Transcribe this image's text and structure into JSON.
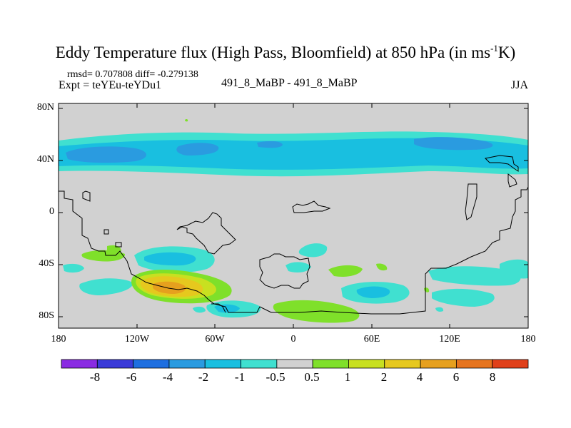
{
  "title": {
    "main": "Eddy Temperature flux (High Pass, Bloomfield) at 850 hPa (in ms",
    "sup": "-1",
    "tail": "K)"
  },
  "stats": "rmsd= 0.707808 diff= -0.279138",
  "expt": "Expt = teYEu-teYDu1",
  "runs": "491_8_MaBP - 491_8_MaBP",
  "season": "JJA",
  "chart_data": {
    "type": "contour-map",
    "variable": "Eddy Temperature flux difference",
    "units": "ms-1K",
    "level": "850 hPa",
    "xlim": [
      -180,
      180
    ],
    "ylim": [
      -90,
      90
    ],
    "x_ticks": [
      -180,
      -120,
      -60,
      0,
      60,
      120,
      180
    ],
    "x_tick_labels": [
      "180",
      "120W",
      "60W",
      "0",
      "60E",
      "120E",
      "180"
    ],
    "y_ticks": [
      80,
      40,
      0,
      -40,
      -80
    ],
    "y_tick_labels": [
      "80N",
      "40N",
      "0",
      "40S",
      "80S"
    ],
    "background_color": "#d1d1d1",
    "colorbar": {
      "levels": [
        "-8",
        "-6",
        "-4",
        "-2",
        "-1",
        "-0.5",
        "0.5",
        "1",
        "2",
        "4",
        "6",
        "8"
      ],
      "colors": [
        "#8a2be2",
        "#3a3ad8",
        "#1e6fe0",
        "#2a9be0",
        "#19bfe0",
        "#40e0d0",
        "#d1d1d1",
        "#7fe02a",
        "#c8e020",
        "#e6c81e",
        "#e6a01e",
        "#e6741e",
        "#e0401a"
      ]
    },
    "regions": [
      {
        "name": "nh-midlat-band",
        "lon": [
          -180,
          180
        ],
        "lat": [
          27,
          60
        ],
        "value_range": [
          -1,
          -0.5
        ]
      },
      {
        "name": "nh-core-1",
        "lon": [
          -170,
          -120
        ],
        "lat": [
          40,
          50
        ],
        "value_range": [
          -2,
          -1
        ]
      },
      {
        "name": "nh-core-2",
        "lon": [
          -95,
          -60
        ],
        "lat": [
          41,
          48
        ],
        "value_range": [
          -2,
          -1
        ]
      },
      {
        "name": "nh-core-3",
        "lon": [
          95,
          165
        ],
        "lat": [
          44,
          52
        ],
        "value_range": [
          -2,
          -1
        ]
      },
      {
        "name": "sh-pacific-max",
        "lon": [
          -120,
          -68
        ],
        "lat": [
          -70,
          -45
        ],
        "value_range": [
          4,
          6
        ]
      },
      {
        "name": "sh-pacific-halo",
        "lon": [
          -120,
          -55
        ],
        "lat": [
          -75,
          -42
        ],
        "value_range": [
          1,
          2
        ]
      },
      {
        "name": "sh-south-atlantic-min",
        "lon": [
          -120,
          -60
        ],
        "lat": [
          -45,
          -25
        ],
        "value_range": [
          -2,
          -1
        ]
      },
      {
        "name": "sh-indian-min",
        "lon": [
          40,
          90
        ],
        "lat": [
          -70,
          -55
        ],
        "value_range": [
          -2,
          -1
        ]
      },
      {
        "name": "antarctic-coast-pos",
        "lon": [
          -20,
          50
        ],
        "lat": [
          -85,
          -72
        ],
        "value_range": [
          0.5,
          1
        ]
      },
      {
        "name": "sh-southern-ocean-neg",
        "lon": [
          90,
          180
        ],
        "lat": [
          -80,
          -55
        ],
        "value_range": [
          -1,
          -0.5
        ]
      }
    ]
  }
}
